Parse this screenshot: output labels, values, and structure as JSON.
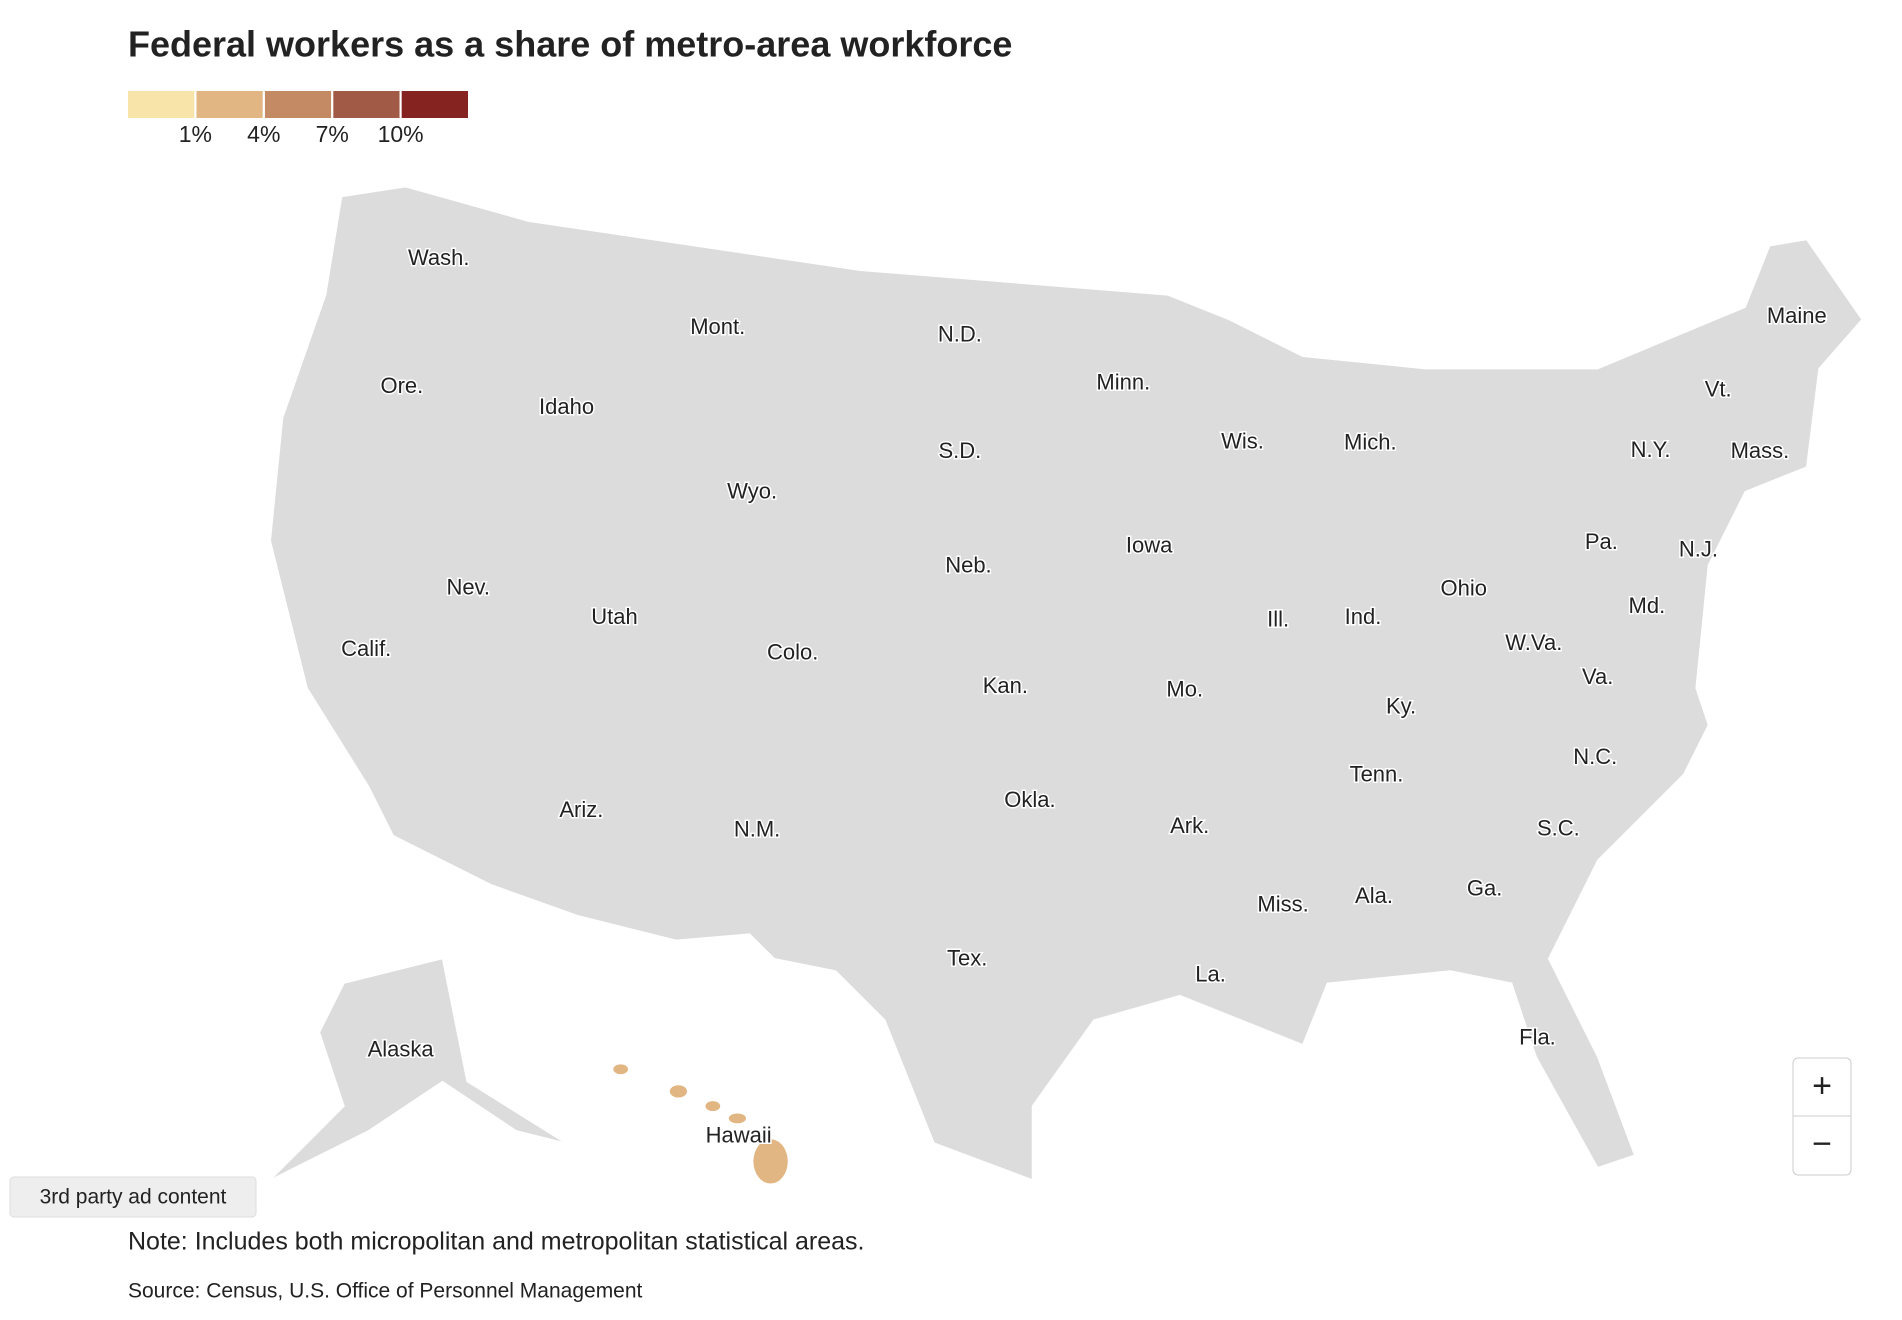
{
  "title": "Federal workers as a share of metro-area workforce",
  "legend": {
    "colors": [
      "#f8e3a9",
      "#e2b683",
      "#c48a64",
      "#a05a45",
      "#84231f"
    ],
    "ticks": [
      {
        "value": 1,
        "label": "1%"
      },
      {
        "value": 4,
        "label": "4%"
      },
      {
        "value": 7,
        "label": "7%"
      },
      {
        "value": 10,
        "label": "10%"
      }
    ]
  },
  "state_labels": [
    "Wash.",
    "Mont.",
    "N.D.",
    "Minn.",
    "Maine",
    "Ore.",
    "Idaho",
    "Wis.",
    "Mich.",
    "Vt.",
    "N.Y.",
    "Mass.",
    "S.D.",
    "Wyo.",
    "Iowa",
    "Pa.",
    "N.J.",
    "Neb.",
    "Nev.",
    "Ohio",
    "Utah",
    "Ill.",
    "Ind.",
    "Md.",
    "Calif.",
    "Colo.",
    "W.Va.",
    "Kan.",
    "Mo.",
    "Va.",
    "Ky.",
    "Tenn.",
    "N.C.",
    "Okla.",
    "Ariz.",
    "N.M.",
    "Ark.",
    "S.C.",
    "Miss.",
    "Ala.",
    "Ga.",
    "Tex.",
    "La.",
    "Fla.",
    "Alaska",
    "Hawaii"
  ],
  "zoom": {
    "in": "+",
    "out": "−"
  },
  "ad_label": "3rd party ad content",
  "note": "Note: Includes both micropolitan and metropolitan statistical areas.",
  "source": "Source: Census, U.S. Office of Personnel Management"
}
